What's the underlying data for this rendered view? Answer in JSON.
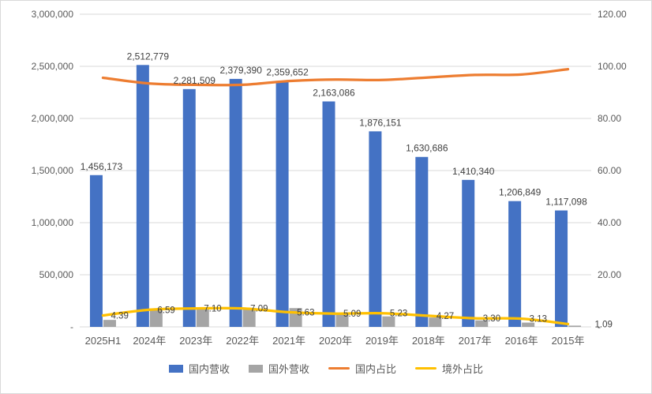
{
  "chart_data": {
    "type": "bar",
    "subtype": "combo-bar-line",
    "title": "",
    "categories": [
      "2025H1",
      "2024年",
      "2023年",
      "2022年",
      "2021年",
      "2020年",
      "2019年",
      "2018年",
      "2017年",
      "2016年",
      "2015年"
    ],
    "bar_series": [
      {
        "name": "国内营收",
        "color": "#4472C4",
        "axis": "left",
        "values": [
          1456173,
          2512779,
          2281509,
          2379390,
          2359652,
          2163086,
          1876151,
          1630686,
          1410340,
          1206849,
          1117098
        ],
        "labels": [
          "1,456,173",
          "2,512,779",
          "2,281,509",
          "2,379,390",
          "2,359,652",
          "2,163,086",
          "1,876,151",
          "1,630,686",
          "1,410,340",
          "1,206,849",
          "1,117,098"
        ],
        "show_labels": true
      },
      {
        "name": "国外营收",
        "color": "#A5A5A5",
        "axis": "left",
        "values": [
          66900,
          177300,
          174400,
          181600,
          180100,
          129100,
          100600,
          90000,
          62900,
          41200,
          12300
        ],
        "values_estimated": true,
        "show_labels": false
      }
    ],
    "line_series": [
      {
        "name": "国内占比",
        "color": "#ED7D31",
        "axis": "right",
        "values": [
          95.61,
          93.41,
          92.9,
          92.91,
          94.37,
          94.91,
          94.77,
          95.73,
          96.7,
          96.87,
          98.91
        ],
        "values_estimated": true,
        "show_labels": false
      },
      {
        "name": "境外占比",
        "color": "#FFC000",
        "axis": "right",
        "values": [
          4.39,
          6.59,
          7.1,
          7.09,
          5.63,
          5.09,
          5.23,
          4.27,
          3.3,
          3.13,
          1.09
        ],
        "labels": [
          "4.39",
          "6.59",
          "7.10",
          "7.09",
          "5.63",
          "5.09",
          "5.23",
          "4.27",
          "3.30",
          "3.13",
          "1.09"
        ],
        "show_labels": true
      }
    ],
    "left_axis": {
      "min": 0,
      "max": 3000000,
      "step": 500000,
      "tick_labels": [
        "-",
        "500,000",
        "1,000,000",
        "1,500,000",
        "2,000,000",
        "2,500,000",
        "3,000,000"
      ]
    },
    "right_axis": {
      "min": 0,
      "max": 120,
      "step": 20,
      "tick_labels": [
        "-",
        "20.00",
        "40.00",
        "60.00",
        "80.00",
        "100.00",
        "120.00"
      ]
    },
    "grid": true,
    "legend_position": "bottom",
    "legend": [
      {
        "label": "国内营收",
        "type": "bar",
        "color": "#4472C4"
      },
      {
        "label": "国外营收",
        "type": "bar",
        "color": "#A5A5A5"
      },
      {
        "label": "国内占比",
        "type": "line",
        "color": "#ED7D31"
      },
      {
        "label": "境外占比",
        "type": "line",
        "color": "#FFC000"
      }
    ],
    "colors": {
      "gridline": "#D9D9D9",
      "axis_text": "#595959",
      "data_label": "#404040",
      "background": "#FFFFFF"
    }
  }
}
